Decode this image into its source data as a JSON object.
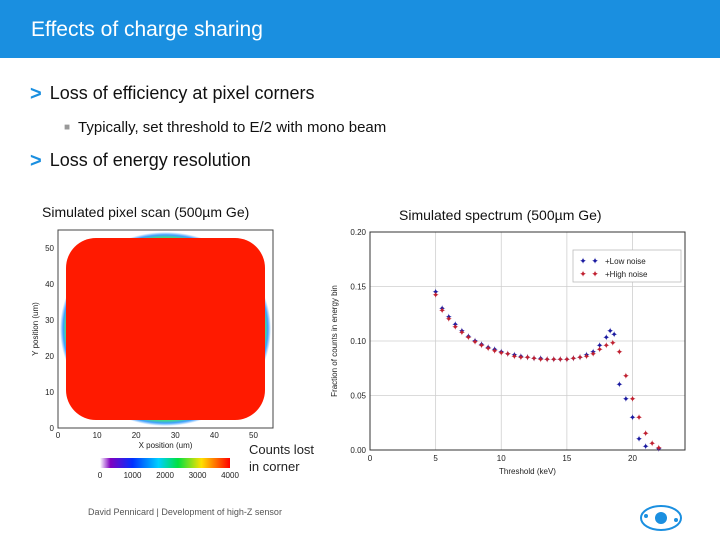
{
  "header": {
    "title": "Effects of charge sharing"
  },
  "bullets": {
    "b1": "Loss of efficiency at pixel corners",
    "b1_sub": "Typically, set threshold to E/2 with mono beam",
    "b2": "Loss of energy resolution"
  },
  "captions": {
    "left": "Simulated pixel scan (500µm Ge)",
    "right": "Simulated spectrum (500µm Ge)"
  },
  "note": {
    "line1": "Counts lost",
    "line2": "in corner"
  },
  "footer": {
    "text": "David Pennicard  |  Development of high-Z sensor"
  },
  "chart_data": [
    {
      "type": "heatmap",
      "title": "Simulated pixel scan (500µm Ge)",
      "xlabel": "X position (um)",
      "ylabel": "Y position (um)",
      "x_ticks": [
        0,
        10,
        20,
        30,
        40,
        50
      ],
      "y_ticks": [
        0,
        10,
        20,
        30,
        40,
        50
      ],
      "xlim": [
        0,
        55
      ],
      "ylim": [
        0,
        55
      ],
      "colorbar_ticks": [
        0,
        1000,
        2000,
        3000,
        4000
      ],
      "colorbar_range": [
        0,
        4000
      ]
    },
    {
      "type": "scatter",
      "title": "Simulated spectrum (500µm Ge)",
      "xlabel": "Threshold (keV)",
      "ylabel": "Fraction of counts in energy bin",
      "xlim": [
        0,
        24
      ],
      "ylim": [
        0,
        0.2
      ],
      "x_ticks": [
        0,
        5,
        10,
        15,
        20
      ],
      "y_ticks": [
        0.0,
        0.05,
        0.1,
        0.15,
        0.2
      ],
      "y_tick_labels": [
        "0.00",
        "0.05",
        "0.10",
        "0.15",
        "0.20"
      ],
      "legend": [
        "Low noise",
        "High noise"
      ],
      "legend_position": "top-right",
      "series": [
        {
          "name": "Low noise",
          "color": "#1a1aa0",
          "points": [
            [
              5,
              0.145
            ],
            [
              5.5,
              0.13
            ],
            [
              6,
              0.122
            ],
            [
              6.5,
              0.115
            ],
            [
              7,
              0.109
            ],
            [
              7.5,
              0.104
            ],
            [
              8,
              0.1
            ],
            [
              8.5,
              0.097
            ],
            [
              9,
              0.094
            ],
            [
              9.5,
              0.092
            ],
            [
              10,
              0.09
            ],
            [
              10.5,
              0.088
            ],
            [
              11,
              0.087
            ],
            [
              11.5,
              0.086
            ],
            [
              12,
              0.085
            ],
            [
              12.5,
              0.084
            ],
            [
              13,
              0.084
            ],
            [
              13.5,
              0.083
            ],
            [
              14,
              0.083
            ],
            [
              14.5,
              0.083
            ],
            [
              15,
              0.083
            ],
            [
              15.5,
              0.084
            ],
            [
              16,
              0.085
            ],
            [
              16.5,
              0.087
            ],
            [
              17,
              0.09
            ],
            [
              17.5,
              0.096
            ],
            [
              18,
              0.103
            ],
            [
              18.3,
              0.109
            ],
            [
              18.6,
              0.106
            ],
            [
              19,
              0.06
            ],
            [
              19.5,
              0.047
            ],
            [
              20,
              0.03
            ],
            [
              20.5,
              0.01
            ],
            [
              21,
              0.003
            ],
            [
              22,
              0.001
            ]
          ]
        },
        {
          "name": "High noise",
          "color": "#c02030",
          "points": [
            [
              5,
              0.142
            ],
            [
              5.5,
              0.128
            ],
            [
              6,
              0.12
            ],
            [
              6.5,
              0.113
            ],
            [
              7,
              0.108
            ],
            [
              7.5,
              0.103
            ],
            [
              8,
              0.099
            ],
            [
              8.5,
              0.096
            ],
            [
              9,
              0.093
            ],
            [
              9.5,
              0.091
            ],
            [
              10,
              0.089
            ],
            [
              10.5,
              0.088
            ],
            [
              11,
              0.086
            ],
            [
              11.5,
              0.085
            ],
            [
              12,
              0.085
            ],
            [
              12.5,
              0.084
            ],
            [
              13,
              0.083
            ],
            [
              13.5,
              0.083
            ],
            [
              14,
              0.083
            ],
            [
              14.5,
              0.083
            ],
            [
              15,
              0.083
            ],
            [
              15.5,
              0.084
            ],
            [
              16,
              0.085
            ],
            [
              16.5,
              0.086
            ],
            [
              17,
              0.088
            ],
            [
              17.5,
              0.092
            ],
            [
              18,
              0.096
            ],
            [
              18.5,
              0.098
            ],
            [
              19,
              0.09
            ],
            [
              19.5,
              0.068
            ],
            [
              20,
              0.047
            ],
            [
              20.5,
              0.03
            ],
            [
              21,
              0.015
            ],
            [
              21.5,
              0.006
            ],
            [
              22,
              0.002
            ]
          ]
        }
      ]
    }
  ],
  "colors": {
    "accent": "#1a8fe0",
    "heat_center": "#ff1a00"
  }
}
